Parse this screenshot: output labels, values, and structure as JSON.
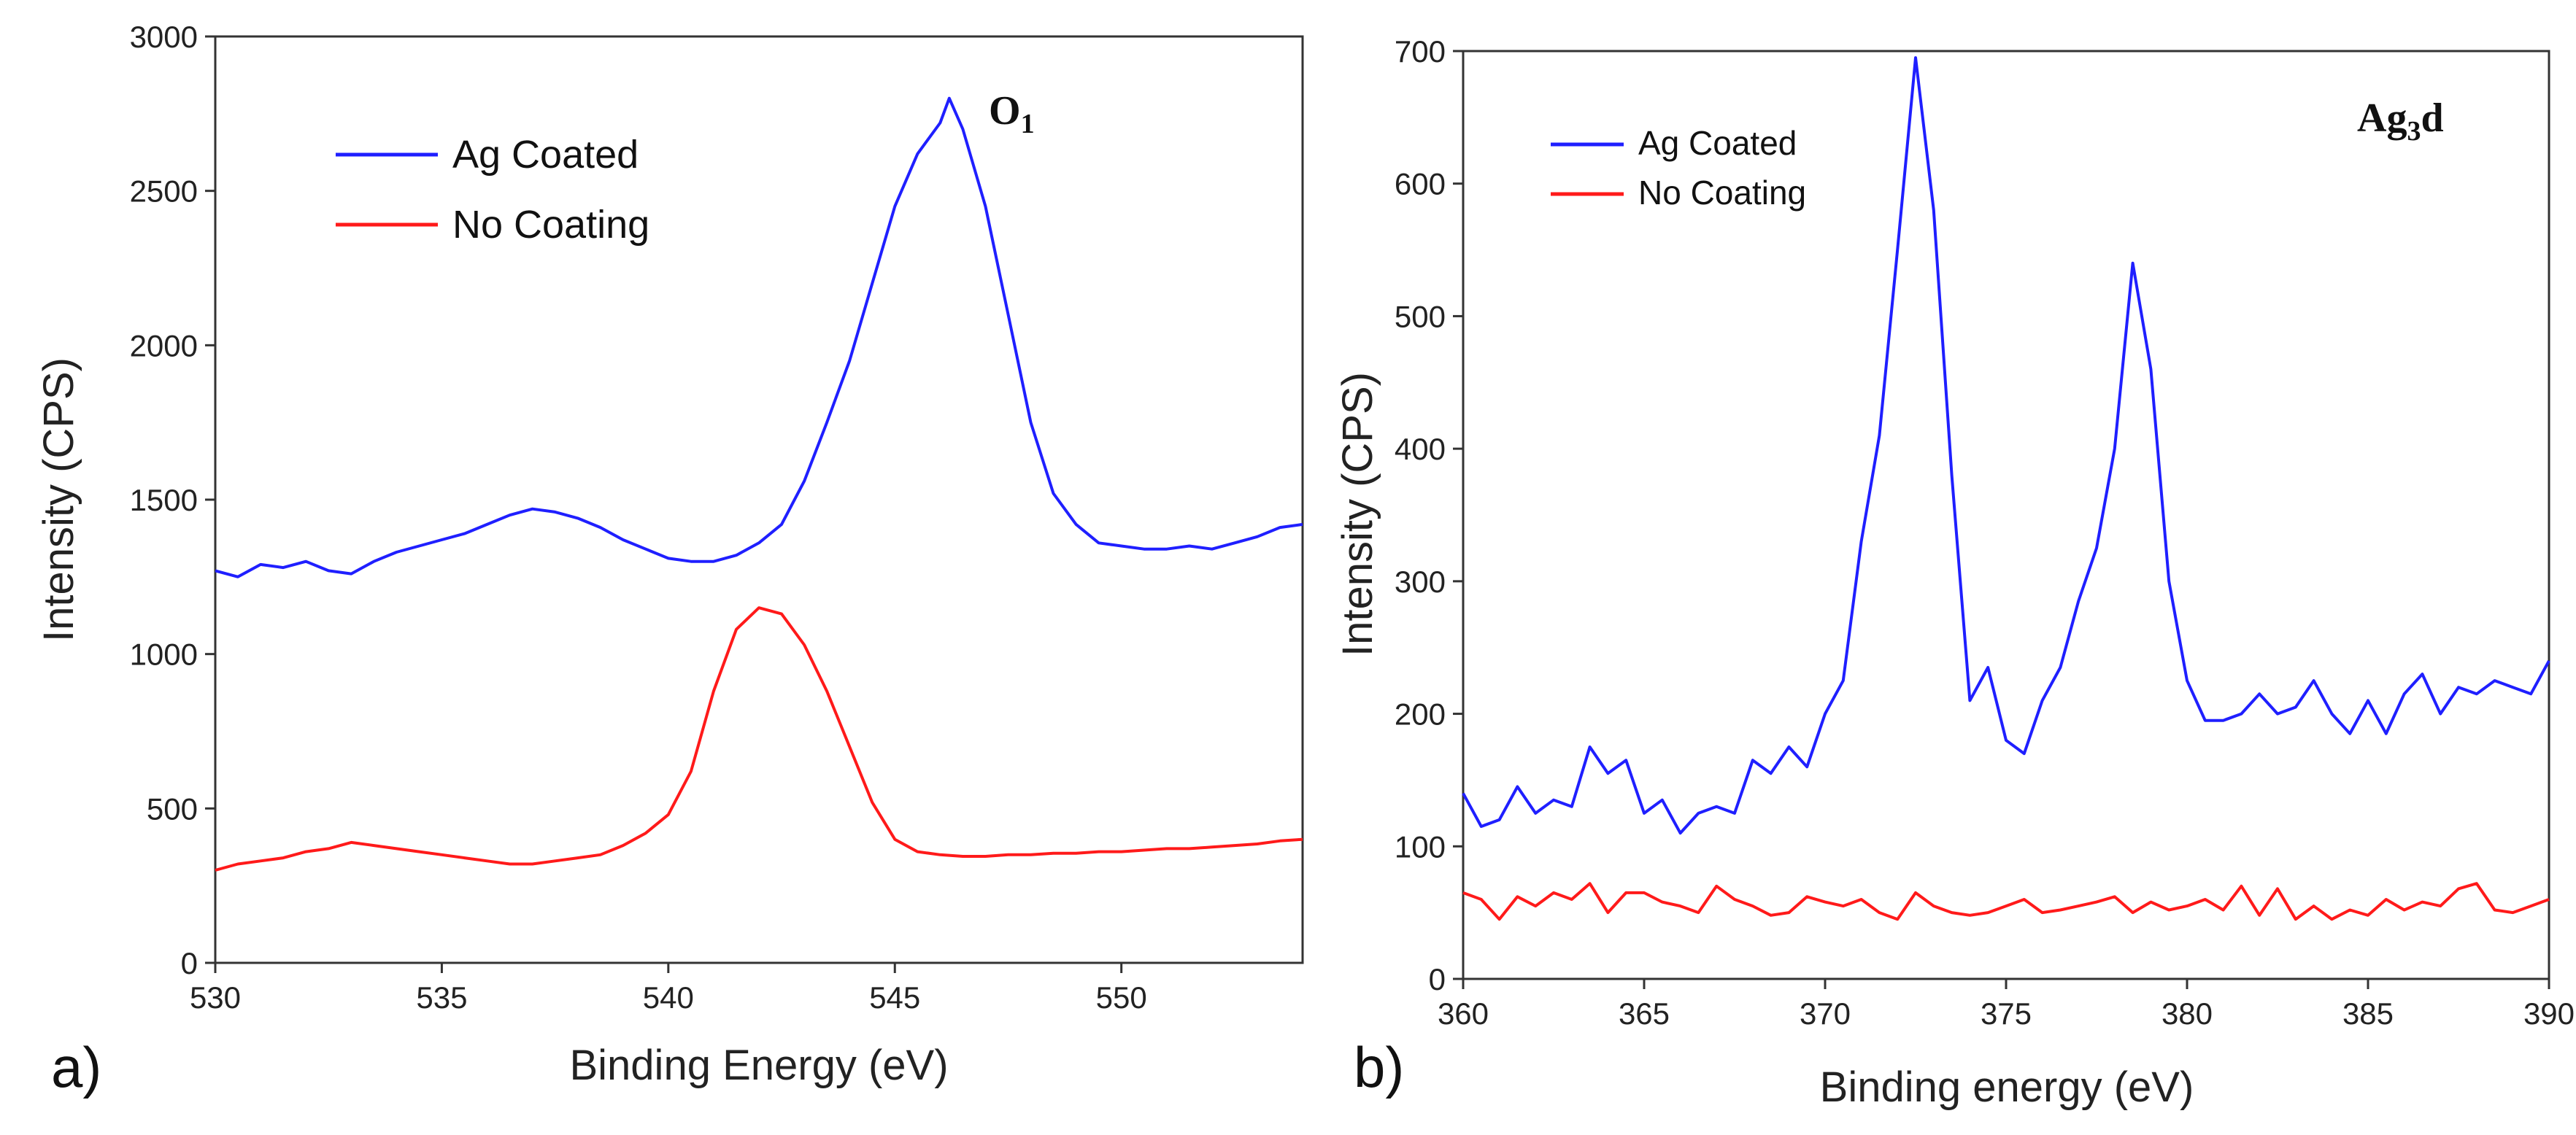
{
  "chart_data": [
    {
      "type": "line",
      "panel_label": "a)",
      "annotation": {
        "main": "O",
        "sub": "1"
      },
      "xlabel": "Binding Energy (eV)",
      "ylabel": "Intensity (CPS)",
      "xlim": [
        530,
        554
      ],
      "ylim": [
        0,
        3000
      ],
      "xticks": [
        530,
        535,
        540,
        545,
        550
      ],
      "yticks": [
        0,
        500,
        1000,
        1500,
        2000,
        2500,
        3000
      ],
      "legend_position": "upper-left",
      "series": [
        {
          "name": "Ag Coated",
          "color": "#1f1fff",
          "x": [
            530,
            530.5,
            531,
            531.5,
            532,
            532.5,
            533,
            533.5,
            534,
            534.5,
            535,
            535.5,
            536,
            536.5,
            537,
            537.5,
            538,
            538.5,
            539,
            539.5,
            540,
            540.5,
            541,
            541.5,
            542,
            542.5,
            543,
            543.5,
            544,
            544.5,
            545,
            545.5,
            546,
            546.2,
            546.5,
            547,
            547.5,
            548,
            548.5,
            549,
            549.5,
            550,
            550.5,
            551,
            551.5,
            552,
            552.5,
            553,
            553.5,
            554
          ],
          "y": [
            1270,
            1250,
            1290,
            1280,
            1300,
            1270,
            1260,
            1300,
            1330,
            1350,
            1370,
            1390,
            1420,
            1450,
            1470,
            1460,
            1440,
            1410,
            1370,
            1340,
            1310,
            1300,
            1300,
            1320,
            1360,
            1420,
            1560,
            1750,
            1950,
            2200,
            2450,
            2620,
            2720,
            2800,
            2700,
            2450,
            2100,
            1750,
            1520,
            1420,
            1360,
            1350,
            1340,
            1340,
            1350,
            1340,
            1360,
            1380,
            1410,
            1420
          ]
        },
        {
          "name": "No Coating",
          "color": "#ff1a1a",
          "x": [
            530,
            530.5,
            531,
            531.5,
            532,
            532.5,
            533,
            533.5,
            534,
            534.5,
            535,
            535.5,
            536,
            536.5,
            537,
            537.5,
            538,
            538.5,
            539,
            539.5,
            540,
            540.5,
            541,
            541.5,
            542,
            542.5,
            543,
            543.5,
            544,
            544.5,
            545,
            545.5,
            546,
            546.5,
            547,
            547.5,
            548,
            548.5,
            549,
            549.5,
            550,
            550.5,
            551,
            551.5,
            552,
            552.5,
            553,
            553.5,
            554
          ],
          "y": [
            300,
            320,
            330,
            340,
            360,
            370,
            390,
            380,
            370,
            360,
            350,
            340,
            330,
            320,
            320,
            330,
            340,
            350,
            380,
            420,
            480,
            620,
            880,
            1080,
            1150,
            1130,
            1030,
            880,
            700,
            520,
            400,
            360,
            350,
            345,
            345,
            350,
            350,
            355,
            355,
            360,
            360,
            365,
            370,
            370,
            375,
            380,
            385,
            395,
            400
          ]
        }
      ]
    },
    {
      "type": "line",
      "panel_label": "b)",
      "annotation": {
        "main": "Ag",
        "sub": "3",
        "tail": "d"
      },
      "xlabel": "Binding energy (eV)",
      "ylabel": "Intensity (CPS)",
      "xlim": [
        360,
        390
      ],
      "ylim": [
        0,
        700
      ],
      "xticks": [
        360,
        365,
        370,
        375,
        380,
        385,
        390
      ],
      "yticks": [
        0,
        100,
        200,
        300,
        400,
        500,
        600,
        700
      ],
      "legend_position": "upper-left",
      "series": [
        {
          "name": "Ag Coated",
          "color": "#1f1fff",
          "x": [
            360,
            360.5,
            361,
            361.5,
            362,
            362.5,
            363,
            363.5,
            364,
            364.5,
            365,
            365.5,
            366,
            366.5,
            367,
            367.5,
            368,
            368.5,
            369,
            369.5,
            370,
            370.5,
            371,
            371.5,
            372,
            372.5,
            373,
            373.5,
            374,
            374.5,
            375,
            375.5,
            376,
            376.5,
            377,
            377.5,
            378,
            378.5,
            379,
            379.5,
            380,
            380.5,
            381,
            381.5,
            382,
            382.5,
            383,
            383.5,
            384,
            384.5,
            385,
            385.5,
            386,
            386.5,
            387,
            387.5,
            388,
            388.5,
            389,
            389.5,
            390
          ],
          "y": [
            140,
            115,
            120,
            145,
            125,
            135,
            130,
            175,
            155,
            165,
            125,
            135,
            110,
            125,
            130,
            125,
            165,
            155,
            175,
            160,
            200,
            225,
            330,
            410,
            550,
            695,
            580,
            380,
            210,
            235,
            180,
            170,
            210,
            235,
            285,
            325,
            400,
            540,
            460,
            300,
            225,
            195,
            195,
            200,
            215,
            200,
            205,
            225,
            200,
            185,
            210,
            185,
            215,
            230,
            200,
            220,
            215,
            225,
            220,
            215,
            240
          ]
        },
        {
          "name": "No Coating",
          "color": "#ff1a1a",
          "x": [
            360,
            360.5,
            361,
            361.5,
            362,
            362.5,
            363,
            363.5,
            364,
            364.5,
            365,
            365.5,
            366,
            366.5,
            367,
            367.5,
            368,
            368.5,
            369,
            369.5,
            370,
            370.5,
            371,
            371.5,
            372,
            372.5,
            373,
            373.5,
            374,
            374.5,
            375,
            375.5,
            376,
            376.5,
            377,
            377.5,
            378,
            378.5,
            379,
            379.5,
            380,
            380.5,
            381,
            381.5,
            382,
            382.5,
            383,
            383.5,
            384,
            384.5,
            385,
            385.5,
            386,
            386.5,
            387,
            387.5,
            388,
            388.5,
            389,
            389.5,
            390
          ],
          "y": [
            65,
            60,
            45,
            62,
            55,
            65,
            60,
            72,
            50,
            65,
            65,
            58,
            55,
            50,
            70,
            60,
            55,
            48,
            50,
            62,
            58,
            55,
            60,
            50,
            45,
            65,
            55,
            50,
            48,
            50,
            55,
            60,
            50,
            52,
            55,
            58,
            62,
            50,
            58,
            52,
            55,
            60,
            52,
            70,
            48,
            68,
            45,
            55,
            45,
            52,
            48,
            60,
            52,
            58,
            55,
            68,
            72,
            52,
            50,
            55,
            60
          ]
        }
      ]
    }
  ]
}
